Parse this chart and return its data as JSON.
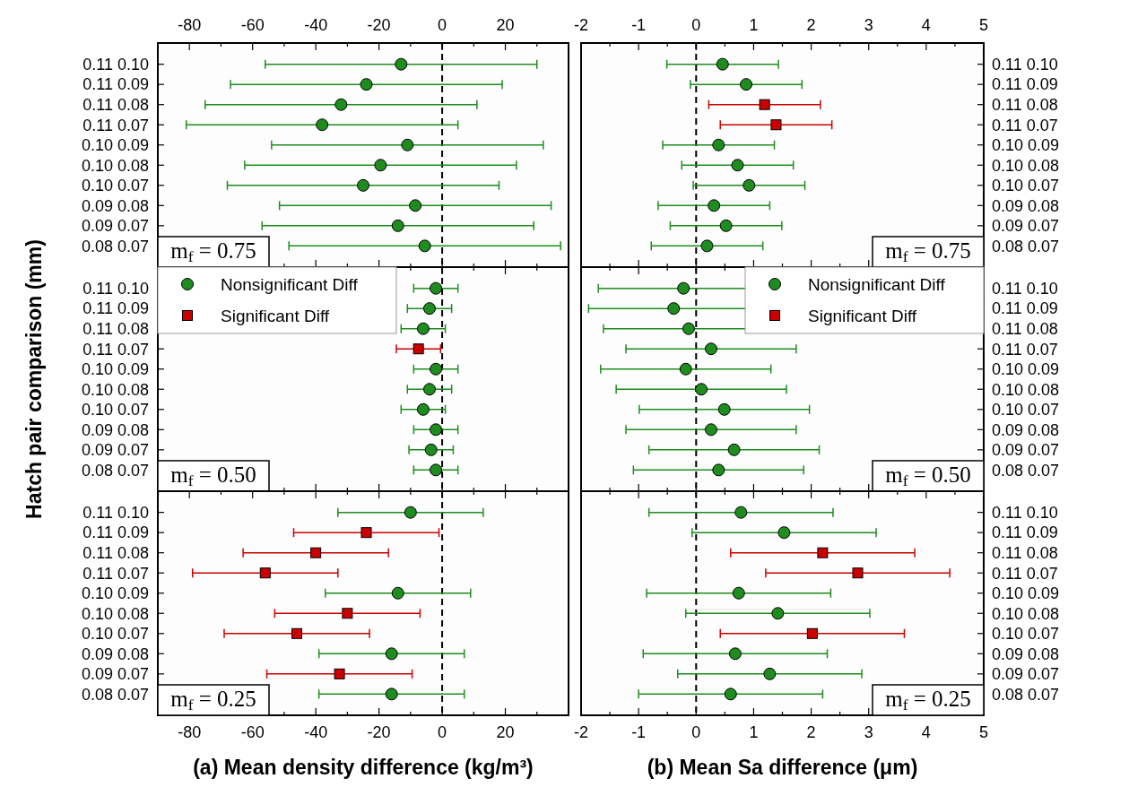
{
  "chart_data": [
    {
      "type": "scatter",
      "orientation": "horizontal",
      "categories": [
        "0.11 0.10",
        "0.11 0.09",
        "0.11 0.08",
        "0.11 0.07",
        "0.10 0.09",
        "0.10 0.08",
        "0.10 0.07",
        "0.09 0.08",
        "0.09 0.07",
        "0.08 0.07"
      ],
      "xlim": [
        -90,
        40
      ],
      "xticks": [
        -80,
        {
          "value": -70,
          "label": null
        },
        -60,
        {
          "value": -50,
          "label": null
        },
        -40,
        {
          "value": -30,
          "label": null
        },
        -20,
        {
          "value": -10,
          "label": null
        },
        0,
        {
          "value": 10,
          "label": null
        },
        20,
        {
          "value": 30,
          "label": null
        }
      ],
      "annotations": [
        "m$_{f}$ = 0.75"
      ],
      "ref_lines": [
        {
          "axis": "x",
          "value": 0,
          "color": "#000000",
          "line_style": "dashed"
        }
      ],
      "series": [
        {
          "color": "#1e8c1e",
          "marker": "circle",
          "values": [
            -13,
            -24,
            -32,
            -38,
            -11,
            -19.5,
            -25,
            -8.5,
            -14,
            -5.5
          ],
          "errors": [
            43,
            43,
            43,
            43,
            43,
            43,
            43,
            43,
            43,
            43
          ]
        }
      ]
    },
    {
      "type": "scatter",
      "orientation": "horizontal",
      "categories": [
        "0.11 0.10",
        "0.11 0.09",
        "0.11 0.08",
        "0.11 0.07",
        "0.10 0.09",
        "0.10 0.08",
        "0.10 0.07",
        "0.09 0.08",
        "0.09 0.07",
        "0.08 0.07"
      ],
      "xlim": [
        -2,
        5
      ],
      "xticks": [
        -2,
        {
          "value": -1.5,
          "label": null
        },
        -1,
        {
          "value": -0.5,
          "label": null
        },
        0,
        {
          "value": 0.5,
          "label": null
        },
        1,
        {
          "value": 1.5,
          "label": null
        },
        2,
        {
          "value": 2.5,
          "label": null
        },
        3,
        {
          "value": 3.5,
          "label": null
        },
        4,
        {
          "value": 4.5,
          "label": null
        },
        5
      ],
      "annotations": [
        "m$_{f}$ = 0.75"
      ],
      "ref_lines": [
        {
          "axis": "x",
          "value": 0,
          "color": "#000000",
          "line_style": "dashed"
        }
      ],
      "series": [
        {
          "color": "#1e8c1e",
          "marker": "circle",
          "values": [
            0.46,
            0.87,
            null,
            null,
            0.39,
            0.72,
            0.92,
            0.31,
            0.52,
            0.19
          ],
          "errors": [
            0.97,
            0.97,
            null,
            null,
            0.97,
            0.97,
            0.97,
            0.97,
            0.97,
            0.97
          ]
        },
        {
          "color": "#cc0000",
          "marker": "square",
          "values": [
            null,
            null,
            1.19,
            1.39,
            null,
            null,
            null,
            null,
            null,
            null
          ],
          "errors": [
            null,
            null,
            0.97,
            0.97,
            null,
            null,
            null,
            null,
            null,
            null
          ]
        }
      ]
    },
    {
      "type": "scatter",
      "orientation": "horizontal",
      "categories": [
        "0.11 0.10",
        "0.11 0.09",
        "0.11 0.08",
        "0.11 0.07",
        "0.10 0.09",
        "0.10 0.08",
        "0.10 0.07",
        "0.09 0.08",
        "0.09 0.07",
        "0.08 0.07"
      ],
      "xlim": [
        -90,
        40
      ],
      "xticks": [
        -80,
        {
          "value": -70,
          "label": null
        },
        -60,
        {
          "value": -50,
          "label": null
        },
        -40,
        {
          "value": -30,
          "label": null
        },
        -20,
        {
          "value": -10,
          "label": null
        },
        0,
        {
          "value": 10,
          "label": null
        },
        20,
        {
          "value": 30,
          "label": null
        }
      ],
      "tick_labels": "y",
      "ylabel": "Hatch pair comparison (mm)",
      "annotations": [
        "m$_{f}$ = 0.50"
      ],
      "legend": "top left",
      "ref_lines": [
        {
          "axis": "x",
          "value": 0,
          "color": "#000000",
          "line_style": "dashed"
        }
      ],
      "series": [
        {
          "name": "Nonsignificant Diff",
          "color": "#1e8c1e",
          "marker": "circle",
          "values": [
            -2,
            -4,
            -6,
            null,
            -2,
            -4,
            -6,
            -2,
            -3.5,
            -2
          ],
          "errors": [
            7,
            7,
            7,
            null,
            7,
            7,
            7,
            7,
            7,
            7
          ]
        },
        {
          "name": "Significant Diff",
          "color": "#cc0000",
          "marker": "square",
          "values": [
            null,
            null,
            null,
            -7.5,
            null,
            null,
            null,
            null,
            null,
            null
          ],
          "errors": [
            null,
            null,
            null,
            7,
            null,
            null,
            null,
            null,
            null,
            null
          ]
        }
      ]
    },
    {
      "type": "scatter",
      "orientation": "horizontal",
      "categories": [
        "0.11 0.10",
        "0.11 0.09",
        "0.11 0.08",
        "0.11 0.07",
        "0.10 0.09",
        "0.10 0.08",
        "0.10 0.07",
        "0.09 0.08",
        "0.09 0.07",
        "0.08 0.07"
      ],
      "xlim": [
        -2,
        5
      ],
      "xticks": [
        -2,
        {
          "value": -1.5,
          "label": null
        },
        -1,
        {
          "value": -0.5,
          "label": null
        },
        0,
        {
          "value": 0.5,
          "label": null
        },
        1,
        {
          "value": 1.5,
          "label": null
        },
        2,
        {
          "value": 2.5,
          "label": null
        },
        3,
        {
          "value": 3.5,
          "label": null
        },
        4,
        {
          "value": 4.5,
          "label": null
        },
        5
      ],
      "tick_labels": "y",
      "annotations": [
        "m$_{f}$ = 0.50"
      ],
      "legend": "top right",
      "ref_lines": [
        {
          "axis": "x",
          "value": 0,
          "color": "#000000",
          "line_style": "dashed"
        }
      ],
      "series": [
        {
          "name": "Nonsignificant Diff",
          "color": "#1e8c1e",
          "marker": "circle",
          "values": [
            -0.22,
            -0.39,
            -0.13,
            0.26,
            -0.18,
            0.09,
            0.49,
            0.26,
            0.66,
            0.39
          ],
          "errors": [
            1.48,
            1.48,
            1.48,
            1.48,
            1.48,
            1.48,
            1.48,
            1.48,
            1.48,
            1.48
          ]
        },
        {
          "name": "Significant Diff",
          "color": "#cc0000",
          "marker": "square",
          "values": [
            null,
            null,
            null,
            null,
            null,
            null,
            null,
            null,
            null,
            null
          ],
          "errors": [
            null,
            null,
            null,
            null,
            null,
            null,
            null,
            null,
            null,
            null
          ]
        }
      ]
    },
    {
      "type": "scatter",
      "orientation": "horizontal",
      "categories": [
        "0.11 0.10",
        "0.11 0.09",
        "0.11 0.08",
        "0.11 0.07",
        "0.10 0.09",
        "0.10 0.08",
        "0.10 0.07",
        "0.09 0.08",
        "0.09 0.07",
        "0.08 0.07"
      ],
      "xlim": [
        -90,
        40
      ],
      "xticks": [
        -80,
        {
          "value": -70,
          "label": null
        },
        -60,
        {
          "value": -50,
          "label": null
        },
        -40,
        {
          "value": -30,
          "label": null
        },
        -20,
        {
          "value": -10,
          "label": null
        },
        0,
        {
          "value": 10,
          "label": null
        },
        20,
        {
          "value": 30,
          "label": null
        }
      ],
      "xlabel": "(a) Mean density difference (kg/m³)",
      "annotations": [
        "m$_{f}$ = 0.25"
      ],
      "ref_lines": [
        {
          "axis": "x",
          "value": 0,
          "color": "#000000",
          "line_style": "dashed"
        }
      ],
      "series": [
        {
          "color": "#1e8c1e",
          "marker": "circle",
          "values": [
            -10,
            null,
            null,
            null,
            -14,
            null,
            null,
            -16,
            null,
            -16
          ],
          "errors": [
            23,
            null,
            null,
            null,
            23,
            null,
            null,
            23,
            null,
            23
          ]
        },
        {
          "color": "#cc0000",
          "marker": "square",
          "values": [
            null,
            -24,
            -40,
            -56,
            null,
            -30,
            -46,
            null,
            -32.5,
            null
          ],
          "errors": [
            null,
            23,
            23,
            23,
            null,
            23,
            23,
            null,
            23,
            null
          ]
        }
      ]
    },
    {
      "type": "scatter",
      "orientation": "horizontal",
      "categories": [
        "0.11 0.10",
        "0.11 0.09",
        "0.11 0.08",
        "0.11 0.07",
        "0.10 0.09",
        "0.10 0.08",
        "0.10 0.07",
        "0.09 0.08",
        "0.09 0.07",
        "0.08 0.07"
      ],
      "xlim": [
        -2,
        5
      ],
      "xticks": [
        -2,
        {
          "value": -1.5,
          "label": null
        },
        -1,
        {
          "value": -0.5,
          "label": null
        },
        0,
        {
          "value": 0.5,
          "label": null
        },
        1,
        {
          "value": 1.5,
          "label": null
        },
        2,
        {
          "value": 2.5,
          "label": null
        },
        3,
        {
          "value": 3.5,
          "label": null
        },
        4,
        {
          "value": 4.5,
          "label": null
        },
        5
      ],
      "xlabel": "(b) Mean Sa difference (μm)",
      "annotations": [
        "m$_{f}$ = 0.25"
      ],
      "ref_lines": [
        {
          "axis": "x",
          "value": 0,
          "color": "#000000",
          "line_style": "dashed"
        }
      ],
      "series": [
        {
          "color": "#1e8c1e",
          "marker": "circle",
          "values": [
            0.78,
            1.53,
            null,
            null,
            0.74,
            1.42,
            null,
            0.68,
            1.28,
            0.6
          ],
          "errors": [
            1.6,
            1.6,
            null,
            null,
            1.6,
            1.6,
            null,
            1.6,
            1.6,
            1.6
          ]
        },
        {
          "color": "#cc0000",
          "marker": "square",
          "values": [
            null,
            null,
            2.2,
            2.81,
            null,
            null,
            2.02,
            null,
            null,
            null
          ],
          "errors": [
            null,
            null,
            1.6,
            1.6,
            null,
            null,
            1.6,
            null,
            null,
            null
          ]
        }
      ]
    }
  ]
}
